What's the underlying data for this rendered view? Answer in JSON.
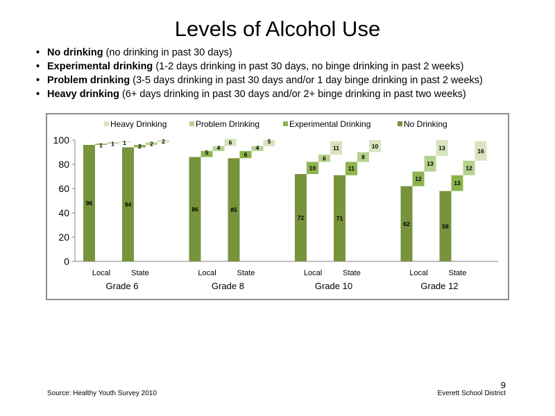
{
  "slide": {
    "title": "Levels of Alcohol Use",
    "bullets": [
      {
        "term": "No drinking",
        "desc": " (no drinking in past 30 days)"
      },
      {
        "term": "Experimental  drinking",
        "desc": " (1-2 days drinking in past 30 days, no binge drinking in past 2 weeks)"
      },
      {
        "term": "Problem drinking",
        "desc": " (3-5 days drinking in past 30 days and/or 1 day binge drinking in past 2 weeks)"
      },
      {
        "term": "Heavy drinking",
        "desc": " (6+ days drinking in past 30 days and/or 2+ binge drinking in past two weeks)"
      }
    ],
    "source": "Source: Healthy Youth Survey 2010",
    "organization": "Everett School District",
    "page_number": "9"
  },
  "colors": {
    "no_drinking": "#77933c",
    "experimental": "#8db34e",
    "problem": "#b5d28e",
    "heavy": "#d7e4bd",
    "axis": "#808080"
  },
  "chart_data": {
    "type": "bar",
    "stacking": "waterfall",
    "ylim": [
      0,
      100
    ],
    "yticks": [
      0,
      20,
      40,
      60,
      80,
      100
    ],
    "legend_position": "top",
    "grid": false,
    "groups": [
      {
        "label": "Grade 6",
        "bars": [
          {
            "label": "Local",
            "values": [
              96,
              1,
              1,
              1
            ]
          },
          {
            "label": "State",
            "values": [
              94,
              2,
              2,
              2
            ]
          }
        ]
      },
      {
        "label": "Grade 8",
        "bars": [
          {
            "label": "Local",
            "values": [
              86,
              5,
              4,
              6
            ]
          },
          {
            "label": "State",
            "values": [
              85,
              6,
              4,
              5
            ]
          }
        ]
      },
      {
        "label": "Grade 10",
        "bars": [
          {
            "label": "Local",
            "values": [
              72,
              10,
              6,
              11
            ]
          },
          {
            "label": "State",
            "values": [
              71,
              11,
              8,
              10
            ]
          }
        ]
      },
      {
        "label": "Grade 12",
        "bars": [
          {
            "label": "Local",
            "values": [
              62,
              12,
              13,
              13
            ]
          },
          {
            "label": "State",
            "values": [
              58,
              13,
              12,
              16
            ]
          }
        ]
      }
    ],
    "series": [
      {
        "name": "No Drinking",
        "color_key": "no_drinking"
      },
      {
        "name": "Experimental Drinking",
        "color_key": "experimental"
      },
      {
        "name": "Problem Drinking",
        "color_key": "problem"
      },
      {
        "name": "Heavy Drinking",
        "color_key": "heavy"
      }
    ],
    "legend_order": [
      "Heavy Drinking",
      "Problem Drinking",
      "Experimental Drinking",
      "No Drinking"
    ]
  }
}
